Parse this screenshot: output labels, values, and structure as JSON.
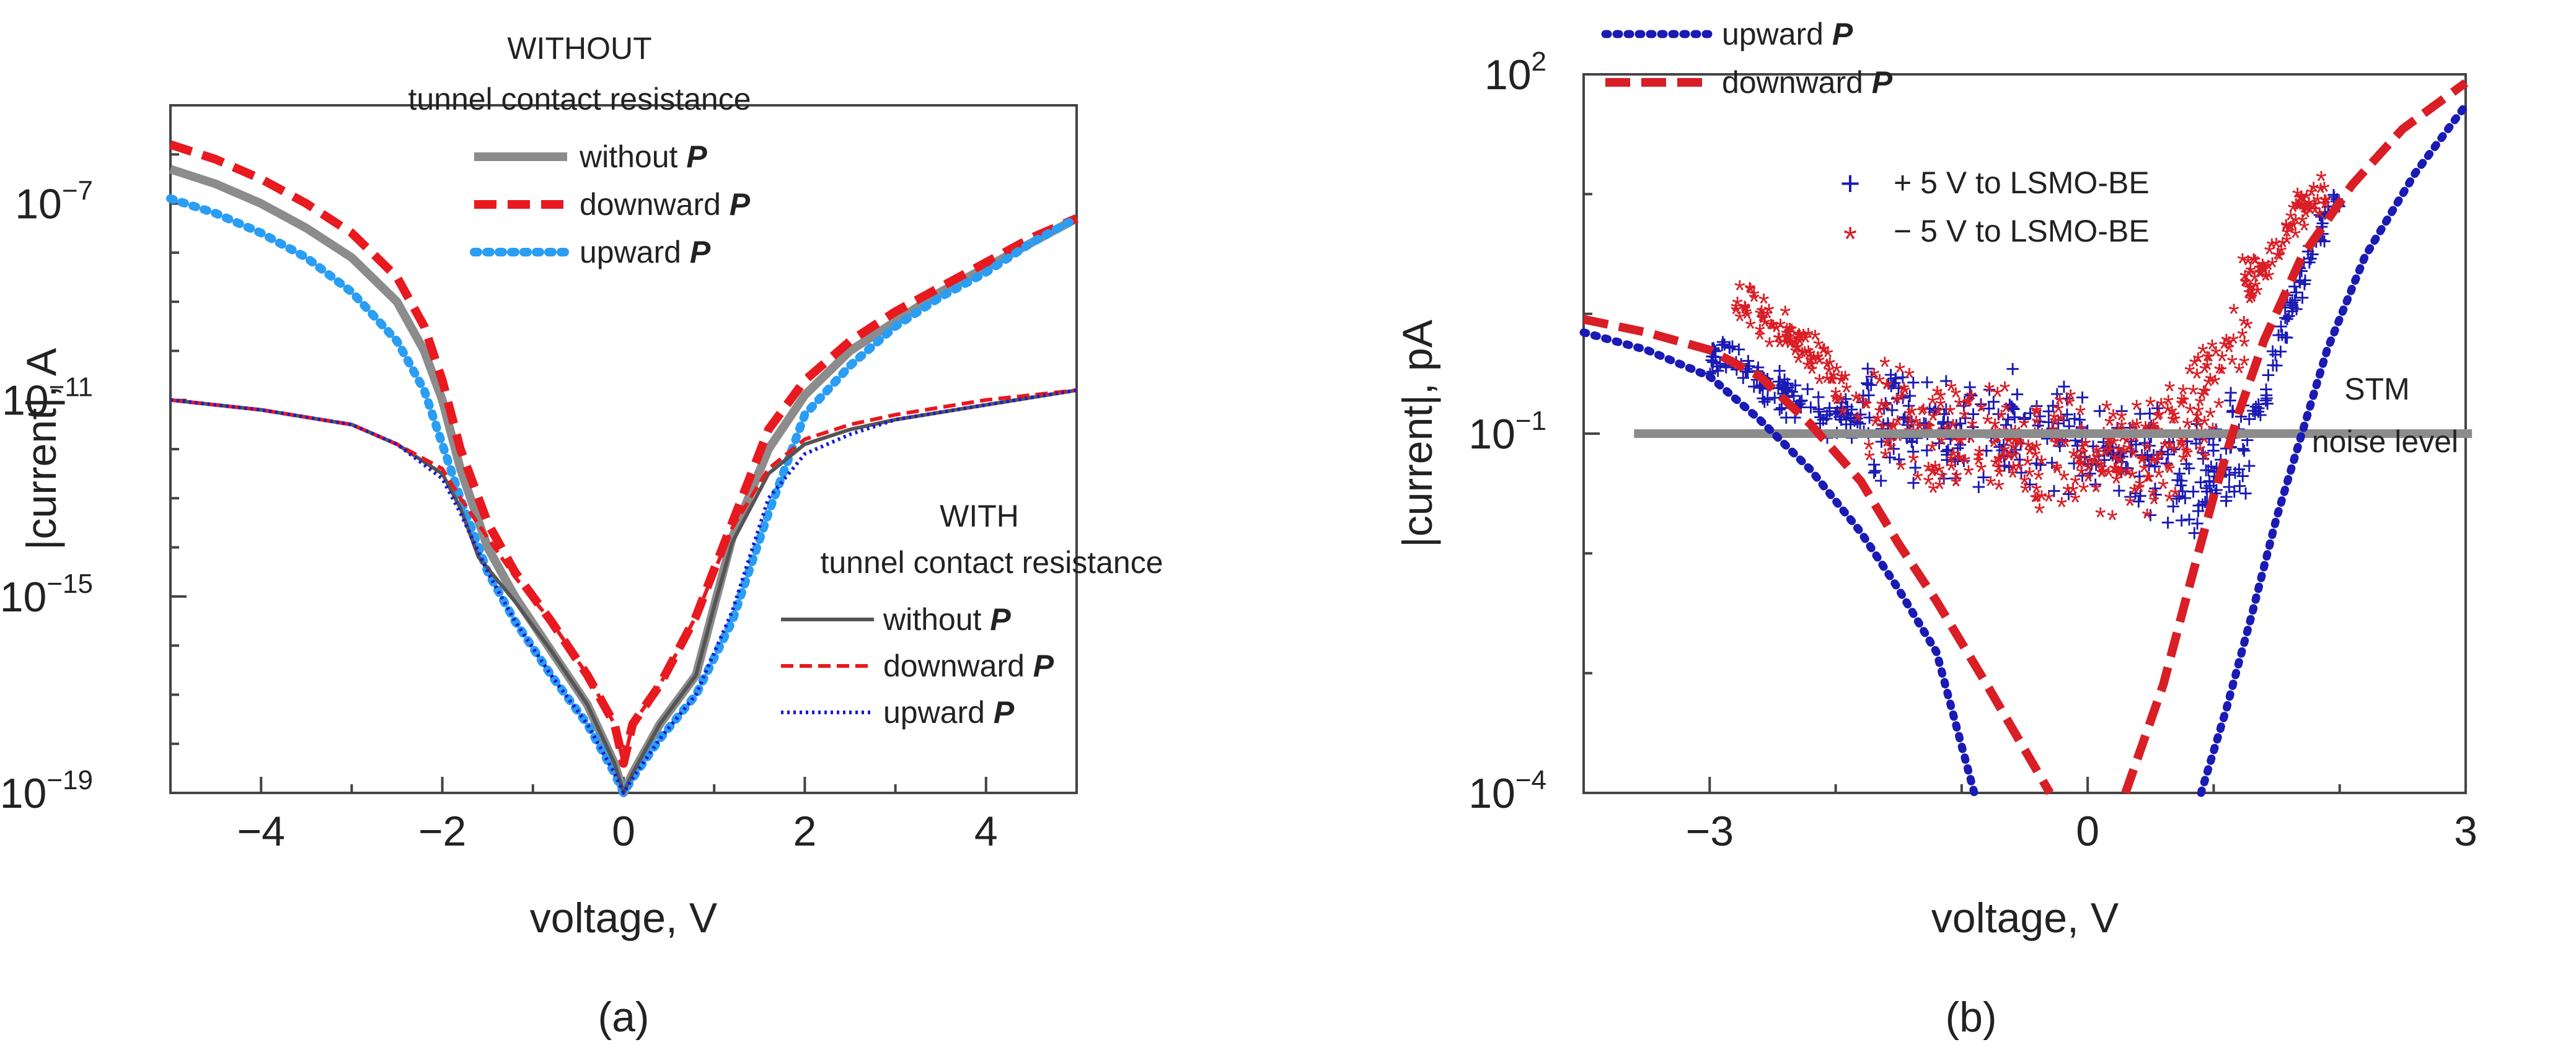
{
  "chart_data": [
    {
      "id": "a",
      "type": "line",
      "panel_label": "(a)",
      "xlabel": "voltage, V",
      "ylabel": "|current|, A",
      "yscale": "log",
      "xlim": [
        -5,
        5
      ],
      "ylim": [
        1e-19,
        1e-05
      ],
      "xticks": [
        {
          "v": -4,
          "label": "−4"
        },
        {
          "v": -2,
          "label": "−2"
        },
        {
          "v": 0,
          "label": "0"
        },
        {
          "v": 2,
          "label": "2"
        },
        {
          "v": 4,
          "label": "4"
        }
      ],
      "yticks": [
        {
          "exp": -19,
          "base": "10",
          "sup": "−19"
        },
        {
          "exp": -15,
          "base": "10",
          "sup": "−15"
        },
        {
          "exp": -11,
          "base": "10",
          "sup": "−11"
        },
        {
          "exp": -7,
          "base": "10",
          "sup": "−7"
        }
      ],
      "legend_groups": [
        {
          "title_lines": [
            "WITHOUT",
            "tunnel contact resistance"
          ],
          "entries": [
            {
              "text": "without ",
              "italic": "P"
            },
            {
              "text": "downward ",
              "italic": "P"
            },
            {
              "text": "upward ",
              "italic": "P"
            }
          ]
        },
        {
          "title_lines": [
            "WITH",
            "tunnel contact resistance"
          ],
          "entries": [
            {
              "text": "without ",
              "italic": "P"
            },
            {
              "text": "downward ",
              "italic": "P"
            },
            {
              "text": "upward ",
              "italic": "P"
            }
          ]
        }
      ],
      "series": [
        {
          "name": "without P (without tunnel contact resistance)",
          "color": "#8c8c8c",
          "style": "solid-thick",
          "points": [
            [
              -5,
              -6.3
            ],
            [
              -4.5,
              -6.6
            ],
            [
              -4,
              -7.0
            ],
            [
              -3.5,
              -7.5
            ],
            [
              -3,
              -8.1
            ],
            [
              -2.5,
              -9.0
            ],
            [
              -2.2,
              -10.0
            ],
            [
              -2,
              -11.0
            ],
            [
              -1.8,
              -12.4
            ],
            [
              -1.5,
              -14.0
            ],
            [
              -1.2,
              -15.0
            ],
            [
              -0.8,
              -16.1
            ],
            [
              -0.4,
              -17.2
            ],
            [
              -0.1,
              -18.4
            ],
            [
              0,
              -19.0
            ],
            [
              0.1,
              -18.6
            ],
            [
              0.4,
              -17.6
            ],
            [
              0.8,
              -16.6
            ],
            [
              1.0,
              -15.2
            ],
            [
              1.2,
              -13.8
            ],
            [
              1.6,
              -12.0
            ],
            [
              2,
              -10.9
            ],
            [
              2.5,
              -10.0
            ],
            [
              3,
              -9.4
            ],
            [
              3.5,
              -8.8
            ],
            [
              4,
              -8.3
            ],
            [
              4.5,
              -7.8
            ],
            [
              5,
              -7.3
            ]
          ]
        },
        {
          "name": "downward P (without tunnel contact resistance)",
          "color": "#e8191f",
          "style": "dash-thick",
          "points": [
            [
              -5,
              -5.8
            ],
            [
              -4.5,
              -6.1
            ],
            [
              -4,
              -6.5
            ],
            [
              -3.5,
              -7.0
            ],
            [
              -3,
              -7.6
            ],
            [
              -2.5,
              -8.5
            ],
            [
              -2.2,
              -9.5
            ],
            [
              -2,
              -10.6
            ],
            [
              -1.8,
              -12.0
            ],
            [
              -1.5,
              -13.5
            ],
            [
              -1.2,
              -14.5
            ],
            [
              -0.8,
              -15.5
            ],
            [
              -0.4,
              -16.6
            ],
            [
              -0.1,
              -17.6
            ],
            [
              0,
              -18.4
            ],
            [
              0.1,
              -17.6
            ],
            [
              0.4,
              -16.8
            ],
            [
              0.8,
              -15.4
            ],
            [
              1.2,
              -13.5
            ],
            [
              1.6,
              -11.6
            ],
            [
              2,
              -10.6
            ],
            [
              2.5,
              -9.8
            ],
            [
              3,
              -9.2
            ],
            [
              3.5,
              -8.7
            ],
            [
              4,
              -8.2
            ],
            [
              4.5,
              -7.7
            ],
            [
              5,
              -7.3
            ]
          ]
        },
        {
          "name": "upward P (without tunnel contact resistance)",
          "color": "#2a9df4",
          "style": "dot-thick",
          "points": [
            [
              -5,
              -6.9
            ],
            [
              -4.5,
              -7.2
            ],
            [
              -4,
              -7.6
            ],
            [
              -3.5,
              -8.1
            ],
            [
              -3,
              -8.8
            ],
            [
              -2.5,
              -9.8
            ],
            [
              -2.2,
              -10.8
            ],
            [
              -2,
              -11.9
            ],
            [
              -1.8,
              -13.0
            ],
            [
              -1.5,
              -14.5
            ],
            [
              -1.2,
              -15.5
            ],
            [
              -0.8,
              -16.6
            ],
            [
              -0.4,
              -17.6
            ],
            [
              -0.1,
              -18.6
            ],
            [
              0,
              -19.0
            ],
            [
              0.1,
              -18.7
            ],
            [
              0.4,
              -17.9
            ],
            [
              0.8,
              -17.0
            ],
            [
              1.2,
              -15.5
            ],
            [
              1.6,
              -13.3
            ],
            [
              2,
              -11.3
            ],
            [
              2.5,
              -10.3
            ],
            [
              3,
              -9.5
            ],
            [
              3.5,
              -8.9
            ],
            [
              4,
              -8.4
            ],
            [
              4.5,
              -7.8
            ],
            [
              5,
              -7.3
            ]
          ]
        },
        {
          "name": "without P (with tunnel contact resistance)",
          "color": "#555555",
          "style": "solid-thin",
          "points": [
            [
              -5,
              -11.0
            ],
            [
              -4,
              -11.2
            ],
            [
              -3,
              -11.5
            ],
            [
              -2.5,
              -11.9
            ],
            [
              -2,
              -12.5
            ],
            [
              -1.8,
              -13.2
            ],
            [
              -1.6,
              -14.2
            ],
            [
              -1.2,
              -15.1
            ],
            [
              -0.8,
              -16.1
            ],
            [
              -0.4,
              -17.2
            ],
            [
              -0.1,
              -18.4
            ],
            [
              0,
              -19.0
            ],
            [
              0.1,
              -18.6
            ],
            [
              0.4,
              -17.6
            ],
            [
              0.8,
              -16.6
            ],
            [
              1.0,
              -15.2
            ],
            [
              1.2,
              -13.9
            ],
            [
              1.6,
              -12.5
            ],
            [
              2,
              -11.9
            ],
            [
              2.5,
              -11.6
            ],
            [
              3,
              -11.4
            ],
            [
              4,
              -11.1
            ],
            [
              5,
              -10.8
            ]
          ]
        },
        {
          "name": "downward P (with tunnel contact resistance)",
          "color": "#e8191f",
          "style": "dash-thin",
          "points": [
            [
              -5,
              -11.0
            ],
            [
              -4,
              -11.2
            ],
            [
              -3,
              -11.5
            ],
            [
              -2.5,
              -11.9
            ],
            [
              -2,
              -12.4
            ],
            [
              -1.8,
              -13.0
            ],
            [
              -1.5,
              -13.8
            ],
            [
              -1.2,
              -14.6
            ],
            [
              -0.8,
              -15.5
            ],
            [
              -0.4,
              -16.6
            ],
            [
              -0.1,
              -17.6
            ],
            [
              0,
              -18.4
            ],
            [
              0.1,
              -17.6
            ],
            [
              0.4,
              -16.8
            ],
            [
              0.8,
              -15.4
            ],
            [
              1.2,
              -13.6
            ],
            [
              1.6,
              -12.4
            ],
            [
              2,
              -11.8
            ],
            [
              2.5,
              -11.5
            ],
            [
              3,
              -11.3
            ],
            [
              4,
              -11.0
            ],
            [
              5,
              -10.8
            ]
          ]
        },
        {
          "name": "upward P (with tunnel contact resistance)",
          "color": "#1a1ad6",
          "style": "dot-thin",
          "points": [
            [
              -5,
              -11.0
            ],
            [
              -4,
              -11.2
            ],
            [
              -3,
              -11.5
            ],
            [
              -2.5,
              -11.9
            ],
            [
              -2,
              -12.6
            ],
            [
              -1.8,
              -13.3
            ],
            [
              -1.5,
              -14.5
            ],
            [
              -1.2,
              -15.5
            ],
            [
              -0.8,
              -16.6
            ],
            [
              -0.4,
              -17.6
            ],
            [
              -0.1,
              -18.6
            ],
            [
              0,
              -19.0
            ],
            [
              0.1,
              -18.7
            ],
            [
              0.4,
              -17.9
            ],
            [
              0.8,
              -17.0
            ],
            [
              1.2,
              -15.3
            ],
            [
              1.6,
              -13.0
            ],
            [
              2,
              -12.1
            ],
            [
              2.5,
              -11.7
            ],
            [
              3,
              -11.4
            ],
            [
              4,
              -11.1
            ],
            [
              5,
              -10.8
            ]
          ]
        }
      ]
    },
    {
      "id": "b",
      "type": "scatter",
      "panel_label": "(b)",
      "xlabel": "voltage, V",
      "ylabel": "|current|, pA",
      "yscale": "log",
      "xlim": [
        -4,
        3
      ],
      "ylim": [
        0.0001,
        100
      ],
      "xticks": [
        {
          "v": -3,
          "label": "−3"
        },
        {
          "v": 0,
          "label": "0"
        },
        {
          "v": 3,
          "label": "3"
        }
      ],
      "yticks": [
        {
          "exp": -4,
          "base": "10",
          "sup": "−4"
        },
        {
          "exp": -1,
          "base": "10",
          "sup": "−1"
        },
        {
          "exp": 2,
          "base": "10",
          "sup": "2"
        }
      ],
      "legend_lines": [
        {
          "text": "upward ",
          "italic": "P"
        },
        {
          "text": "downward ",
          "italic": "P"
        }
      ],
      "legend_markers": [
        "+ 5 V to LSMO-BE",
        "− 5 V to LSMO-BE"
      ],
      "annotation_lines": [
        "STM",
        "noise level"
      ],
      "noise_level": 0.1,
      "series": [
        {
          "name": "upward P",
          "color": "#1a1ab4",
          "style": "dot",
          "points": [
            [
              -4,
              0.7
            ],
            [
              -3.5,
              0.5
            ],
            [
              -3,
              0.3
            ],
            [
              -2.6,
              0.13
            ],
            [
              -2.2,
              0.05
            ],
            [
              -1.8,
              0.015
            ],
            [
              -1.5,
              0.005
            ],
            [
              -1.2,
              0.0015
            ],
            [
              -0.9,
              0.0001
            ]
          ]
        },
        {
          "name": "upward P (positive branch)",
          "color": "#1a1ab4",
          "style": "dot",
          "points": [
            [
              0.9,
              0.0001
            ],
            [
              1.1,
              0.0005
            ],
            [
              1.3,
              0.003
            ],
            [
              1.5,
              0.02
            ],
            [
              1.7,
              0.1
            ],
            [
              1.9,
              0.5
            ],
            [
              2.2,
              3
            ],
            [
              2.6,
              15
            ],
            [
              3,
              55
            ]
          ]
        },
        {
          "name": "downward P",
          "color": "#d91e26",
          "style": "dash",
          "points": [
            [
              -4,
              0.9
            ],
            [
              -3.5,
              0.7
            ],
            [
              -3,
              0.5
            ],
            [
              -2.6,
              0.3
            ],
            [
              -2.2,
              0.12
            ],
            [
              -1.8,
              0.04
            ],
            [
              -1.5,
              0.012
            ],
            [
              -1.2,
              0.004
            ],
            [
              -0.8,
              0.0008
            ],
            [
              -0.3,
              0.0001
            ]
          ]
        },
        {
          "name": "downward P (positive branch)",
          "color": "#d91e26",
          "style": "dash",
          "points": [
            [
              0.3,
              0.0001
            ],
            [
              0.6,
              0.0008
            ],
            [
              0.8,
              0.005
            ],
            [
              1.0,
              0.03
            ],
            [
              1.2,
              0.15
            ],
            [
              1.4,
              0.6
            ],
            [
              1.7,
              3
            ],
            [
              2.1,
              12
            ],
            [
              2.5,
              35
            ],
            [
              3,
              85
            ]
          ]
        }
      ],
      "scatter_bands": [
        {
          "name": "+ 5 V to LSMO-BE",
          "marker": "+",
          "color": "#1a1ab4",
          "density": [
            [
              -3.0,
              0.5
            ],
            [
              -2.6,
              0.3
            ],
            [
              -2.2,
              0.15
            ],
            [
              -1.8,
              0.13
            ],
            [
              -1.5,
              0.12
            ],
            [
              -1.0,
              0.11
            ],
            [
              -0.5,
              0.1
            ],
            [
              0,
              0.08
            ],
            [
              0.5,
              0.06
            ],
            [
              0.8,
              0.04
            ],
            [
              1.0,
              0.05
            ],
            [
              1.2,
              0.08
            ],
            [
              1.4,
              0.2
            ],
            [
              1.6,
              1.0
            ],
            [
              1.8,
              4.0
            ],
            [
              2.0,
              8.0
            ]
          ]
        },
        {
          "name": "− 5 V to LSMO-BE",
          "marker": "*",
          "color": "#d91e26",
          "density": [
            [
              -2.8,
              1.2
            ],
            [
              -2.4,
              0.6
            ],
            [
              -2.0,
              0.25
            ],
            [
              -1.7,
              0.12
            ],
            [
              -1.4,
              0.1
            ],
            [
              -1.0,
              0.08
            ],
            [
              -0.5,
              0.07
            ],
            [
              0,
              0.06
            ],
            [
              0.5,
              0.05
            ],
            [
              0.7,
              0.08
            ],
            [
              0.9,
              0.15
            ],
            [
              1.1,
              0.5
            ],
            [
              1.3,
              1.5
            ],
            [
              1.6,
              5.0
            ],
            [
              1.9,
              10.0
            ]
          ]
        }
      ]
    }
  ]
}
